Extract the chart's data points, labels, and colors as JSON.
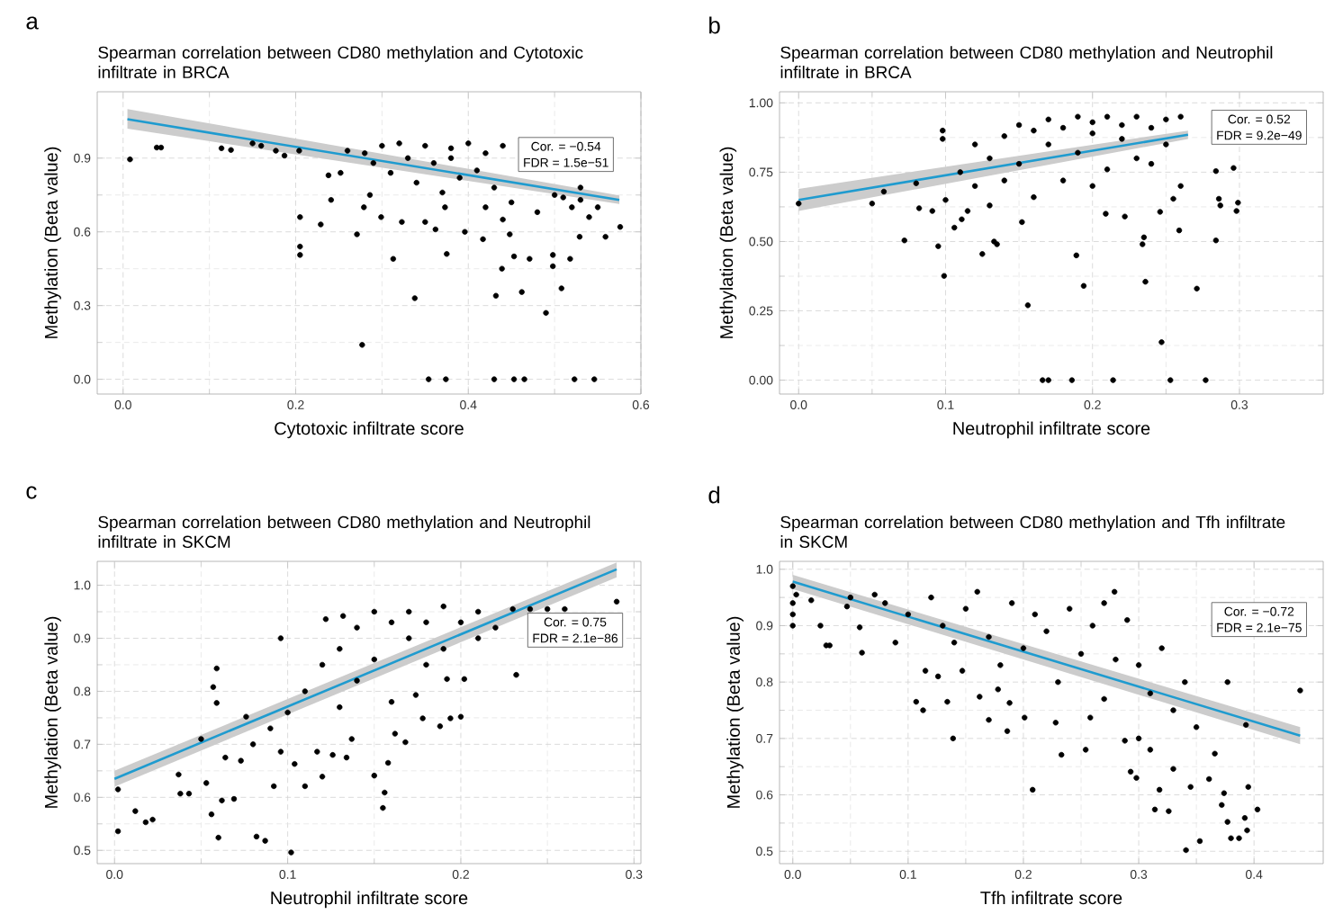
{
  "chart_data": [
    {
      "type": "scatter",
      "title": "Spearman correlation between CD80 methylation and Cytotoxic infiltrate in BRCA",
      "xlabel": "Cytotoxic infiltrate score",
      "ylabel": "Methylation (Beta value)",
      "annotations": [
        "a",
        "Cor. = −0.54",
        "FDR = 1.5e−51"
      ],
      "xlim": [
        -0.03,
        0.6
      ],
      "ylim": [
        -0.06,
        1.17
      ],
      "xticks": [
        {
          "value": 0,
          "label": "0.0"
        },
        {
          "value": 0.2,
          "label": "0.2"
        },
        {
          "value": 0.4,
          "label": "0.4"
        },
        {
          "value": 0.6,
          "label": "0.6"
        }
      ],
      "yticks": [
        {
          "value": 0,
          "label": "0.0"
        },
        {
          "value": 0.3,
          "label": "0.3"
        },
        {
          "value": 0.6,
          "label": "0.6"
        },
        {
          "value": 0.9,
          "label": "0.9"
        }
      ],
      "grid": true,
      "series": [
        {
          "color": "#000000",
          "x": [
            0.008,
            0.039,
            0.044,
            0.114,
            0.125,
            0.15,
            0.16,
            0.177,
            0.187,
            0.204,
            0.205,
            0.205,
            0.205,
            0.229,
            0.238,
            0.241,
            0.252,
            0.271,
            0.279,
            0.277,
            0.286,
            0.299,
            0.313,
            0.323,
            0.338,
            0.35,
            0.354,
            0.362,
            0.373,
            0.375,
            0.374,
            0.396,
            0.417,
            0.43,
            0.432,
            0.439,
            0.448,
            0.453,
            0.453,
            0.462,
            0.465,
            0.471,
            0.49,
            0.498,
            0.498,
            0.508,
            0.518,
            0.523,
            0.529,
            0.546,
            0.559,
            0.576,
            0.26,
            0.28,
            0.3,
            0.32,
            0.33,
            0.35,
            0.36,
            0.38,
            0.4,
            0.41,
            0.42,
            0.43,
            0.44,
            0.45,
            0.48,
            0.5,
            0.52,
            0.53,
            0.54,
            0.34,
            0.37,
            0.39,
            0.42,
            0.44,
            0.31,
            0.29,
            0.38,
            0.53,
            0.55,
            0.51
          ],
          "values": [
            0.895,
            0.943,
            0.943,
            0.94,
            0.933,
            0.96,
            0.95,
            0.93,
            0.91,
            0.93,
            0.66,
            0.54,
            0.506,
            0.63,
            0.83,
            0.73,
            0.84,
            0.59,
            0.7,
            0.14,
            0.75,
            0.66,
            0.49,
            0.64,
            0.33,
            0.64,
            0,
            0.61,
            0.7,
            0.51,
            0,
            0.6,
            0.57,
            0,
            0.34,
            0.45,
            0.59,
            0.5,
            0,
            0.355,
            0,
            0.49,
            0.27,
            0.46,
            0.506,
            0.37,
            0.49,
            0,
            0.58,
            0,
            0.58,
            0.62,
            0.93,
            0.92,
            0.95,
            0.96,
            0.9,
            0.95,
            0.88,
            0.94,
            0.96,
            0.85,
            0.92,
            0.78,
            0.95,
            0.72,
            0.68,
            0.75,
            0.7,
            0.78,
            0.66,
            0.8,
            0.76,
            0.82,
            0.7,
            0.65,
            0.84,
            0.88,
            0.9,
            0.73,
            0.7,
            0.74
          ]
        },
        {
          "type": "line",
          "color": "#1f9bcf",
          "x": [
            0.005,
            0.575
          ],
          "values": [
            1.058,
            0.73
          ],
          "lower": [
            1.02,
            0.713
          ],
          "upper": [
            1.1,
            0.748
          ]
        }
      ]
    },
    {
      "type": "scatter",
      "title": "Spearman correlation between CD80 methylation and Neutrophil infiltrate in BRCA",
      "xlabel": "Neutrophil infiltrate score",
      "ylabel": "Methylation (Beta value)",
      "annotations": [
        "b",
        "Cor. = 0.52",
        "FDR = 9.2e−49"
      ],
      "xlim": [
        -0.013,
        0.357
      ],
      "ylim": [
        -0.05,
        1.04
      ],
      "xticks": [
        {
          "value": 0,
          "label": "0.0"
        },
        {
          "value": 0.1,
          "label": "0.1"
        },
        {
          "value": 0.2,
          "label": "0.2"
        },
        {
          "value": 0.3,
          "label": "0.3"
        }
      ],
      "yticks": [
        {
          "value": 0,
          "label": "0.00"
        },
        {
          "value": 0.25,
          "label": "0.25"
        },
        {
          "value": 0.5,
          "label": "0.50"
        },
        {
          "value": 0.75,
          "label": "0.75"
        },
        {
          "value": 1,
          "label": "1.00"
        }
      ],
      "grid": true,
      "series": [
        {
          "color": "#000000",
          "x": [
            0,
            0.05,
            0.058,
            0.072,
            0.08,
            0.082,
            0.091,
            0.095,
            0.099,
            0.098,
            0.098,
            0.106,
            0.111,
            0.115,
            0.125,
            0.133,
            0.135,
            0.156,
            0.152,
            0.166,
            0.17,
            0.186,
            0.189,
            0.194,
            0.209,
            0.214,
            0.222,
            0.234,
            0.235,
            0.236,
            0.247,
            0.246,
            0.253,
            0.255,
            0.259,
            0.26,
            0.271,
            0.277,
            0.284,
            0.284,
            0.286,
            0.287,
            0.296,
            0.298,
            0.299,
            0.12,
            0.13,
            0.14,
            0.15,
            0.15,
            0.16,
            0.17,
            0.17,
            0.18,
            0.18,
            0.19,
            0.19,
            0.2,
            0.2,
            0.21,
            0.21,
            0.22,
            0.22,
            0.23,
            0.23,
            0.24,
            0.25,
            0.25,
            0.26,
            0.11,
            0.12,
            0.14,
            0.16,
            0.13,
            0.2,
            0.24,
            0.1
          ],
          "values": [
            0.637,
            0.637,
            0.68,
            0.504,
            0.71,
            0.62,
            0.61,
            0.483,
            0.376,
            0.9,
            0.87,
            0.55,
            0.58,
            0.61,
            0.455,
            0.5,
            0.49,
            0.27,
            0.57,
            0,
            0,
            0,
            0.45,
            0.34,
            0.6,
            0,
            0.59,
            0.49,
            0.515,
            0.355,
            0.137,
            0.607,
            0,
            0.654,
            0.54,
            0.7,
            0.33,
            0,
            0.754,
            0.504,
            0.654,
            0.63,
            0.765,
            0.61,
            0.64,
            0.85,
            0.8,
            0.88,
            0.92,
            0.78,
            0.9,
            0.85,
            0.94,
            0.72,
            0.91,
            0.95,
            0.82,
            0.89,
            0.93,
            0.76,
            0.95,
            0.87,
            0.92,
            0.95,
            0.8,
            0.91,
            0.94,
            0.85,
            0.95,
            0.75,
            0.7,
            0.72,
            0.66,
            0.63,
            0.7,
            0.78,
            0.65
          ]
        },
        {
          "type": "line",
          "color": "#1f9bcf",
          "x": [
            0,
            0.265
          ],
          "values": [
            0.65,
            0.885
          ],
          "lower": [
            0.61,
            0.87
          ],
          "upper": [
            0.69,
            0.9
          ]
        }
      ]
    },
    {
      "type": "scatter",
      "title": "Spearman correlation between CD80 methylation and Neutrophil infiltrate in SKCM",
      "xlabel": "Neutrophil infiltrate score",
      "ylabel": "Methylation (Beta value)",
      "annotations": [
        "c",
        "Cor. = 0.75",
        "FDR = 2.1e−86"
      ],
      "xlim": [
        -0.01,
        0.304
      ],
      "ylim": [
        0.475,
        1.045
      ],
      "xticks": [
        {
          "value": 0,
          "label": "0.0"
        },
        {
          "value": 0.1,
          "label": "0.1"
        },
        {
          "value": 0.2,
          "label": "0.2"
        },
        {
          "value": 0.3,
          "label": "0.3"
        }
      ],
      "yticks": [
        0.5,
        0.6,
        0.7,
        0.8,
        0.9,
        {
          "value": 1,
          "label": "1.0"
        }
      ],
      "grid": true,
      "series": [
        {
          "color": "#000000",
          "x": [
            0.002,
            0.002,
            0.012,
            0.018,
            0.022,
            0.037,
            0.038,
            0.043,
            0.05,
            0.053,
            0.056,
            0.057,
            0.059,
            0.059,
            0.06,
            0.062,
            0.064,
            0.069,
            0.073,
            0.076,
            0.082,
            0.087,
            0.092,
            0.096,
            0.096,
            0.102,
            0.104,
            0.11,
            0.117,
            0.12,
            0.122,
            0.126,
            0.132,
            0.134,
            0.137,
            0.15,
            0.155,
            0.156,
            0.158,
            0.162,
            0.168,
            0.174,
            0.178,
            0.188,
            0.192,
            0.194,
            0.202,
            0.2,
            0.232,
            0.29,
            0.13,
            0.14,
            0.14,
            0.15,
            0.15,
            0.16,
            0.16,
            0.17,
            0.17,
            0.18,
            0.18,
            0.19,
            0.19,
            0.2,
            0.21,
            0.21,
            0.22,
            0.23,
            0.24,
            0.25,
            0.26,
            0.11,
            0.1,
            0.09,
            0.12,
            0.13,
            0.08
          ],
          "values": [
            0.615,
            0.536,
            0.574,
            0.553,
            0.558,
            0.643,
            0.607,
            0.607,
            0.71,
            0.627,
            0.568,
            0.808,
            0.843,
            0.778,
            0.524,
            0.594,
            0.675,
            0.597,
            0.669,
            0.752,
            0.526,
            0.518,
            0.621,
            0.9,
            0.686,
            0.496,
            0.663,
            0.621,
            0.686,
            0.639,
            0.936,
            0.68,
            0.942,
            0.675,
            0.71,
            0.641,
            0.58,
            0.609,
            0.665,
            0.72,
            0.704,
            0.793,
            0.749,
            0.734,
            0.823,
            0.749,
            0.823,
            0.752,
            0.831,
            0.969,
            0.88,
            0.92,
            0.82,
            0.95,
            0.86,
            0.93,
            0.78,
            0.9,
            0.95,
            0.85,
            0.93,
            0.96,
            0.88,
            0.93,
            0.9,
            0.95,
            0.92,
            0.955,
            0.955,
            0.955,
            0.955,
            0.8,
            0.76,
            0.73,
            0.85,
            0.77,
            0.7
          ]
        },
        {
          "type": "line",
          "color": "#1f9bcf",
          "x": [
            0,
            0.29
          ],
          "values": [
            0.635,
            1.03
          ],
          "lower": [
            0.62,
            1.015
          ],
          "upper": [
            0.65,
            1.043
          ]
        }
      ]
    },
    {
      "type": "scatter",
      "title": "Spearman correlation between CD80 methylation and Tfh infiltrate in SKCM",
      "xlabel": "Tfh infiltrate score",
      "ylabel": "Methylation (Beta value)",
      "annotations": [
        "d",
        "Cor. = −0.72",
        "FDR = 2.1e−75"
      ],
      "xlim": [
        -0.0115,
        0.46
      ],
      "ylim": [
        0.478,
        1.014
      ],
      "xticks": [
        {
          "value": 0,
          "label": "0.0"
        },
        0.1,
        0.2,
        0.3,
        0.4
      ],
      "yticks": [
        0.5,
        0.6,
        0.7,
        0.8,
        0.9,
        {
          "value": 1,
          "label": "1.0"
        }
      ],
      "grid": true,
      "series": [
        {
          "color": "#000000",
          "x": [
            0,
            0,
            0,
            0,
            0.003,
            0.016,
            0.024,
            0.029,
            0.032,
            0.047,
            0.058,
            0.06,
            0.071,
            0.089,
            0.107,
            0.113,
            0.115,
            0.126,
            0.134,
            0.139,
            0.147,
            0.162,
            0.17,
            0.178,
            0.186,
            0.188,
            0.201,
            0.208,
            0.228,
            0.233,
            0.254,
            0.258,
            0.279,
            0.288,
            0.293,
            0.298,
            0.314,
            0.318,
            0.326,
            0.33,
            0.341,
            0.345,
            0.353,
            0.361,
            0.366,
            0.372,
            0.374,
            0.377,
            0.38,
            0.387,
            0.392,
            0.394,
            0.395,
            0.403,
            0.44,
            0.377,
            0.393,
            0.05,
            0.08,
            0.1,
            0.12,
            0.13,
            0.15,
            0.16,
            0.17,
            0.19,
            0.2,
            0.21,
            0.22,
            0.24,
            0.25,
            0.26,
            0.27,
            0.28,
            0.29,
            0.3,
            0.31,
            0.32,
            0.33,
            0.34,
            0.35,
            0.3,
            0.31,
            0.23,
            0.18,
            0.14,
            0.27
          ],
          "values": [
            0.97,
            0.94,
            0.92,
            0.9,
            0.955,
            0.945,
            0.9,
            0.865,
            0.865,
            0.934,
            0.897,
            0.852,
            0.955,
            0.87,
            0.765,
            0.75,
            0.82,
            0.81,
            0.765,
            0.7,
            0.82,
            0.774,
            0.733,
            0.787,
            0.713,
            0.763,
            0.737,
            0.609,
            0.728,
            0.671,
            0.68,
            0.737,
            0.96,
            0.696,
            0.641,
            0.63,
            0.574,
            0.609,
            0.571,
            0.646,
            0.502,
            0.614,
            0.518,
            0.628,
            0.673,
            0.582,
            0.603,
            0.552,
            0.523,
            0.523,
            0.559,
            0.537,
            0.614,
            0.574,
            0.785,
            0.8,
            0.724,
            0.95,
            0.94,
            0.92,
            0.95,
            0.9,
            0.93,
            0.96,
            0.88,
            0.94,
            0.86,
            0.92,
            0.89,
            0.93,
            0.85,
            0.9,
            0.94,
            0.84,
            0.91,
            0.83,
            0.78,
            0.86,
            0.75,
            0.8,
            0.72,
            0.7,
            0.68,
            0.8,
            0.83,
            0.87,
            0.77
          ]
        },
        {
          "type": "line",
          "color": "#1f9bcf",
          "x": [
            0,
            0.44
          ],
          "values": [
            0.978,
            0.705
          ],
          "lower": [
            0.965,
            0.69
          ],
          "upper": [
            0.99,
            0.72
          ]
        }
      ]
    }
  ]
}
